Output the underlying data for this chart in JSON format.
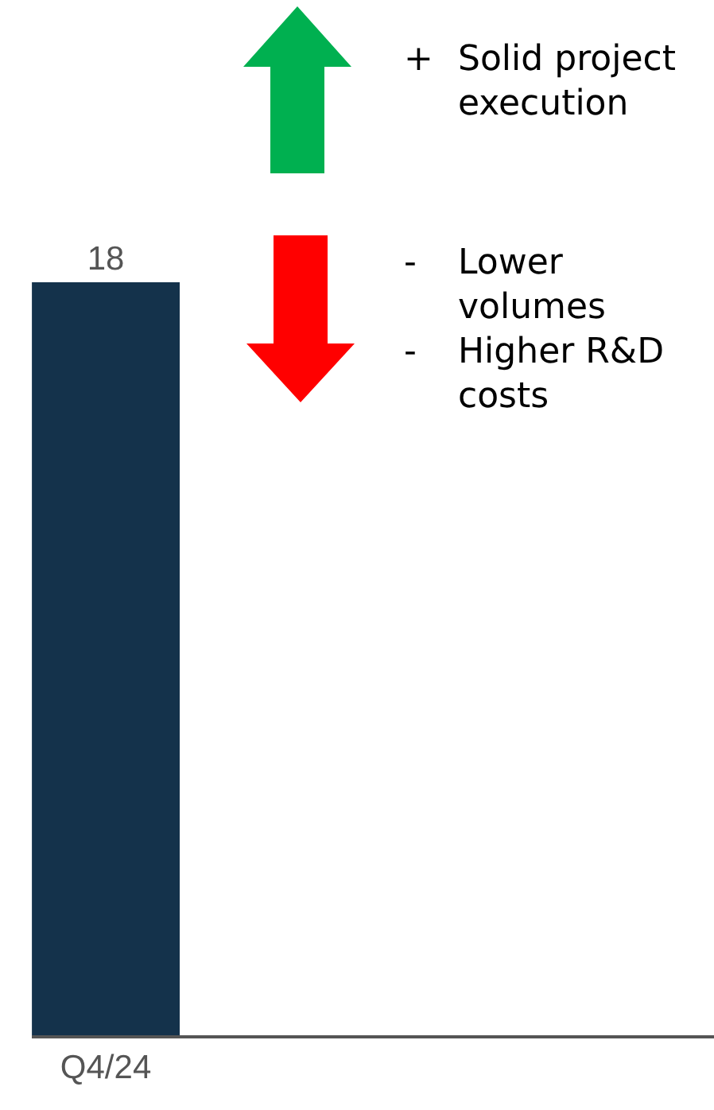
{
  "chart_data": {
    "type": "bar",
    "categories": [
      "Q4/24"
    ],
    "values": [
      18
    ],
    "ylim": [
      0,
      24.75
    ],
    "color": "#14324b",
    "data_labels": true,
    "grid": false,
    "legend": false,
    "annotations": [
      "+ Solid project execution",
      "- Lower volumes",
      "- Higher R&D costs"
    ]
  }
}
